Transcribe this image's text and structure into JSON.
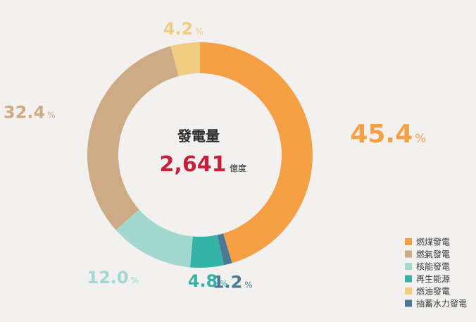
{
  "chart_data": {
    "type": "pie",
    "title": "",
    "center": {
      "heading": "發電量",
      "value": "2,641",
      "unit": "億度"
    },
    "categories": [
      "燃煤發電",
      "抽蓄水力發電",
      "再生能源",
      "核能發電",
      "燃氣發電",
      "燃油發電"
    ],
    "values": [
      45.4,
      1.2,
      4.8,
      12.0,
      32.4,
      4.2
    ],
    "value_labels": [
      "45.4",
      "1.2",
      "4.8",
      "12.0",
      "32.4",
      "4.2"
    ],
    "value_suffix": "%",
    "colors": [
      "#f5a044",
      "#4d7894",
      "#35b2a6",
      "#a2d8cf",
      "#cdab84",
      "#f1cb80"
    ],
    "legend": {
      "placement": "bottom-right",
      "order": [
        "燃煤發電",
        "燃氣發電",
        "核能發電",
        "再生能源",
        "燃油發電",
        "抽蓄水力發電"
      ]
    }
  }
}
